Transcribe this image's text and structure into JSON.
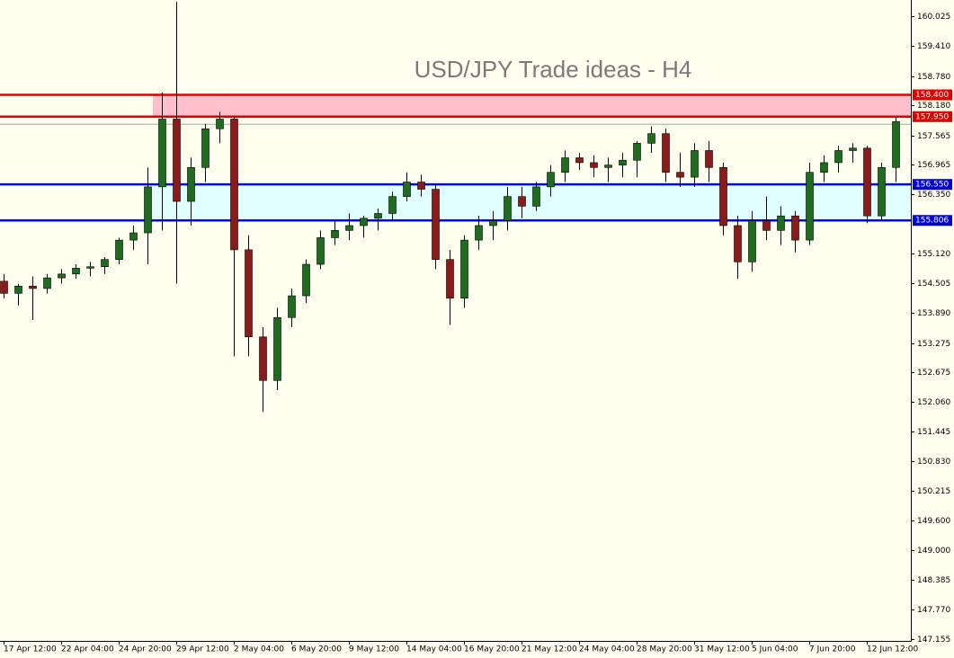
{
  "chart_data": {
    "type": "candlestick",
    "title": "USD/JPY Trade ideas - H4",
    "categories": [
      "17 Apr 12:00",
      null,
      null,
      null,
      "22 Apr 04:00",
      null,
      null,
      null,
      "24 Apr 20:00",
      null,
      null,
      null,
      "29 Apr 12:00",
      null,
      null,
      null,
      "2 May 04:00",
      null,
      null,
      null,
      "6 May 20:00",
      null,
      null,
      null,
      "9 May 12:00",
      null,
      null,
      null,
      "14 May 04:00",
      null,
      null,
      null,
      "16 May 20:00",
      null,
      null,
      null,
      "21 May 12:00",
      null,
      null,
      null,
      "24 May 04:00",
      null,
      null,
      null,
      "28 May 20:00",
      null,
      null,
      null,
      "31 May 12:00",
      null,
      null,
      null,
      "5 Jun 04:00",
      null,
      null,
      null,
      "7 Jun 20:00",
      null,
      null,
      null,
      "12 Jun 12:00",
      null,
      null
    ],
    "open": [
      154.55,
      154.3,
      154.45,
      154.4,
      154.62,
      154.7,
      154.82,
      154.85,
      155.0,
      155.4,
      155.55,
      156.5,
      157.9,
      156.2,
      156.9,
      157.7,
      157.9,
      155.2,
      153.4,
      152.5,
      153.8,
      154.25,
      154.9,
      155.45,
      155.6,
      155.7,
      155.85,
      155.95,
      156.3,
      156.6,
      156.45,
      155.0,
      154.2,
      155.4,
      155.7,
      155.8,
      156.3,
      156.1,
      156.5,
      156.8,
      157.1,
      157.0,
      156.9,
      156.95,
      157.05,
      157.4,
      157.6,
      156.8,
      156.7,
      157.25,
      156.9,
      155.7,
      154.95,
      155.8,
      155.6,
      155.9,
      155.4,
      156.8,
      157.0,
      157.25,
      157.3,
      155.9,
      156.9
    ],
    "high": [
      154.7,
      154.5,
      154.65,
      154.7,
      154.8,
      154.9,
      154.95,
      155.05,
      155.45,
      155.7,
      156.9,
      158.45,
      160.32,
      157.1,
      157.8,
      158.05,
      157.95,
      155.5,
      153.6,
      154.0,
      154.4,
      155.0,
      155.6,
      155.8,
      155.95,
      155.9,
      156.05,
      156.4,
      156.8,
      156.75,
      156.55,
      155.2,
      155.5,
      155.9,
      156.0,
      156.5,
      156.5,
      156.6,
      156.95,
      157.25,
      157.2,
      157.15,
      157.1,
      157.2,
      157.45,
      157.75,
      157.7,
      157.2,
      157.4,
      157.45,
      157.0,
      155.9,
      156.0,
      156.3,
      156.1,
      156.0,
      157.0,
      157.15,
      157.35,
      157.4,
      157.35,
      157.0,
      157.95
    ],
    "low": [
      154.2,
      154.05,
      153.75,
      154.3,
      154.5,
      154.6,
      154.65,
      154.7,
      154.9,
      155.2,
      154.9,
      155.6,
      154.5,
      155.7,
      156.6,
      157.4,
      153.0,
      153.0,
      151.85,
      152.3,
      153.6,
      154.1,
      154.8,
      155.3,
      155.4,
      155.45,
      155.6,
      155.8,
      156.2,
      156.3,
      154.8,
      153.65,
      154.0,
      155.2,
      155.4,
      155.6,
      155.85,
      156.0,
      156.3,
      156.6,
      156.85,
      156.7,
      156.6,
      156.7,
      156.7,
      157.2,
      156.6,
      156.5,
      156.5,
      156.6,
      155.5,
      154.6,
      154.75,
      155.4,
      155.3,
      155.15,
      155.3,
      156.6,
      156.8,
      157.0,
      155.75,
      155.8,
      156.6
    ],
    "close": [
      154.3,
      154.45,
      154.4,
      154.62,
      154.7,
      154.82,
      154.85,
      155.0,
      155.4,
      155.55,
      156.5,
      157.9,
      156.2,
      156.9,
      157.7,
      157.9,
      155.2,
      153.4,
      152.5,
      153.8,
      154.25,
      154.9,
      155.45,
      155.6,
      155.7,
      155.85,
      155.95,
      156.3,
      156.6,
      156.45,
      155.0,
      154.2,
      155.4,
      155.7,
      155.8,
      156.3,
      156.1,
      156.5,
      156.8,
      157.1,
      157.0,
      156.9,
      156.95,
      157.05,
      157.4,
      157.6,
      156.8,
      156.7,
      157.25,
      156.9,
      155.7,
      154.95,
      155.8,
      155.6,
      155.9,
      155.4,
      156.8,
      157.0,
      157.25,
      157.3,
      155.9,
      156.9,
      157.85
    ],
    "up_color": "#1f6b1f",
    "down_color": "#8b1a1a",
    "ylim": [
      147.12,
      160.36
    ],
    "yticks": [
      160.025,
      {
        "value": 159.41,
        "label": "159.410"
      },
      {
        "value": 158.78,
        "label": "158.780"
      },
      {
        "value": 158.18,
        "label": "158.180"
      },
      157.565,
      156.965,
      {
        "value": 156.35,
        "label": "156.350"
      },
      {
        "value": 155.12,
        "label": "155.120"
      },
      154.505,
      {
        "value": 153.89,
        "label": "153.890"
      },
      153.275,
      152.675,
      {
        "value": 152.06,
        "label": "152.060"
      },
      151.445,
      {
        "value": 150.83,
        "label": "150.830"
      },
      150.215,
      {
        "value": 149.6,
        "label": "149.600"
      },
      {
        "value": 149,
        "label": "149.000"
      },
      148.385,
      {
        "value": 147.77,
        "label": "147.770"
      },
      147.155
    ],
    "levels": [
      {
        "value": 158.4,
        "label": "158.400",
        "color": "#e00000"
      },
      {
        "value": 157.95,
        "label": "157.950",
        "color": "#e00000"
      },
      {
        "value": 156.55,
        "label": "156.550",
        "color": "#0000dd"
      },
      {
        "value": 155.806,
        "label": "155.806",
        "color": "#0000dd"
      }
    ],
    "grid": false
  }
}
